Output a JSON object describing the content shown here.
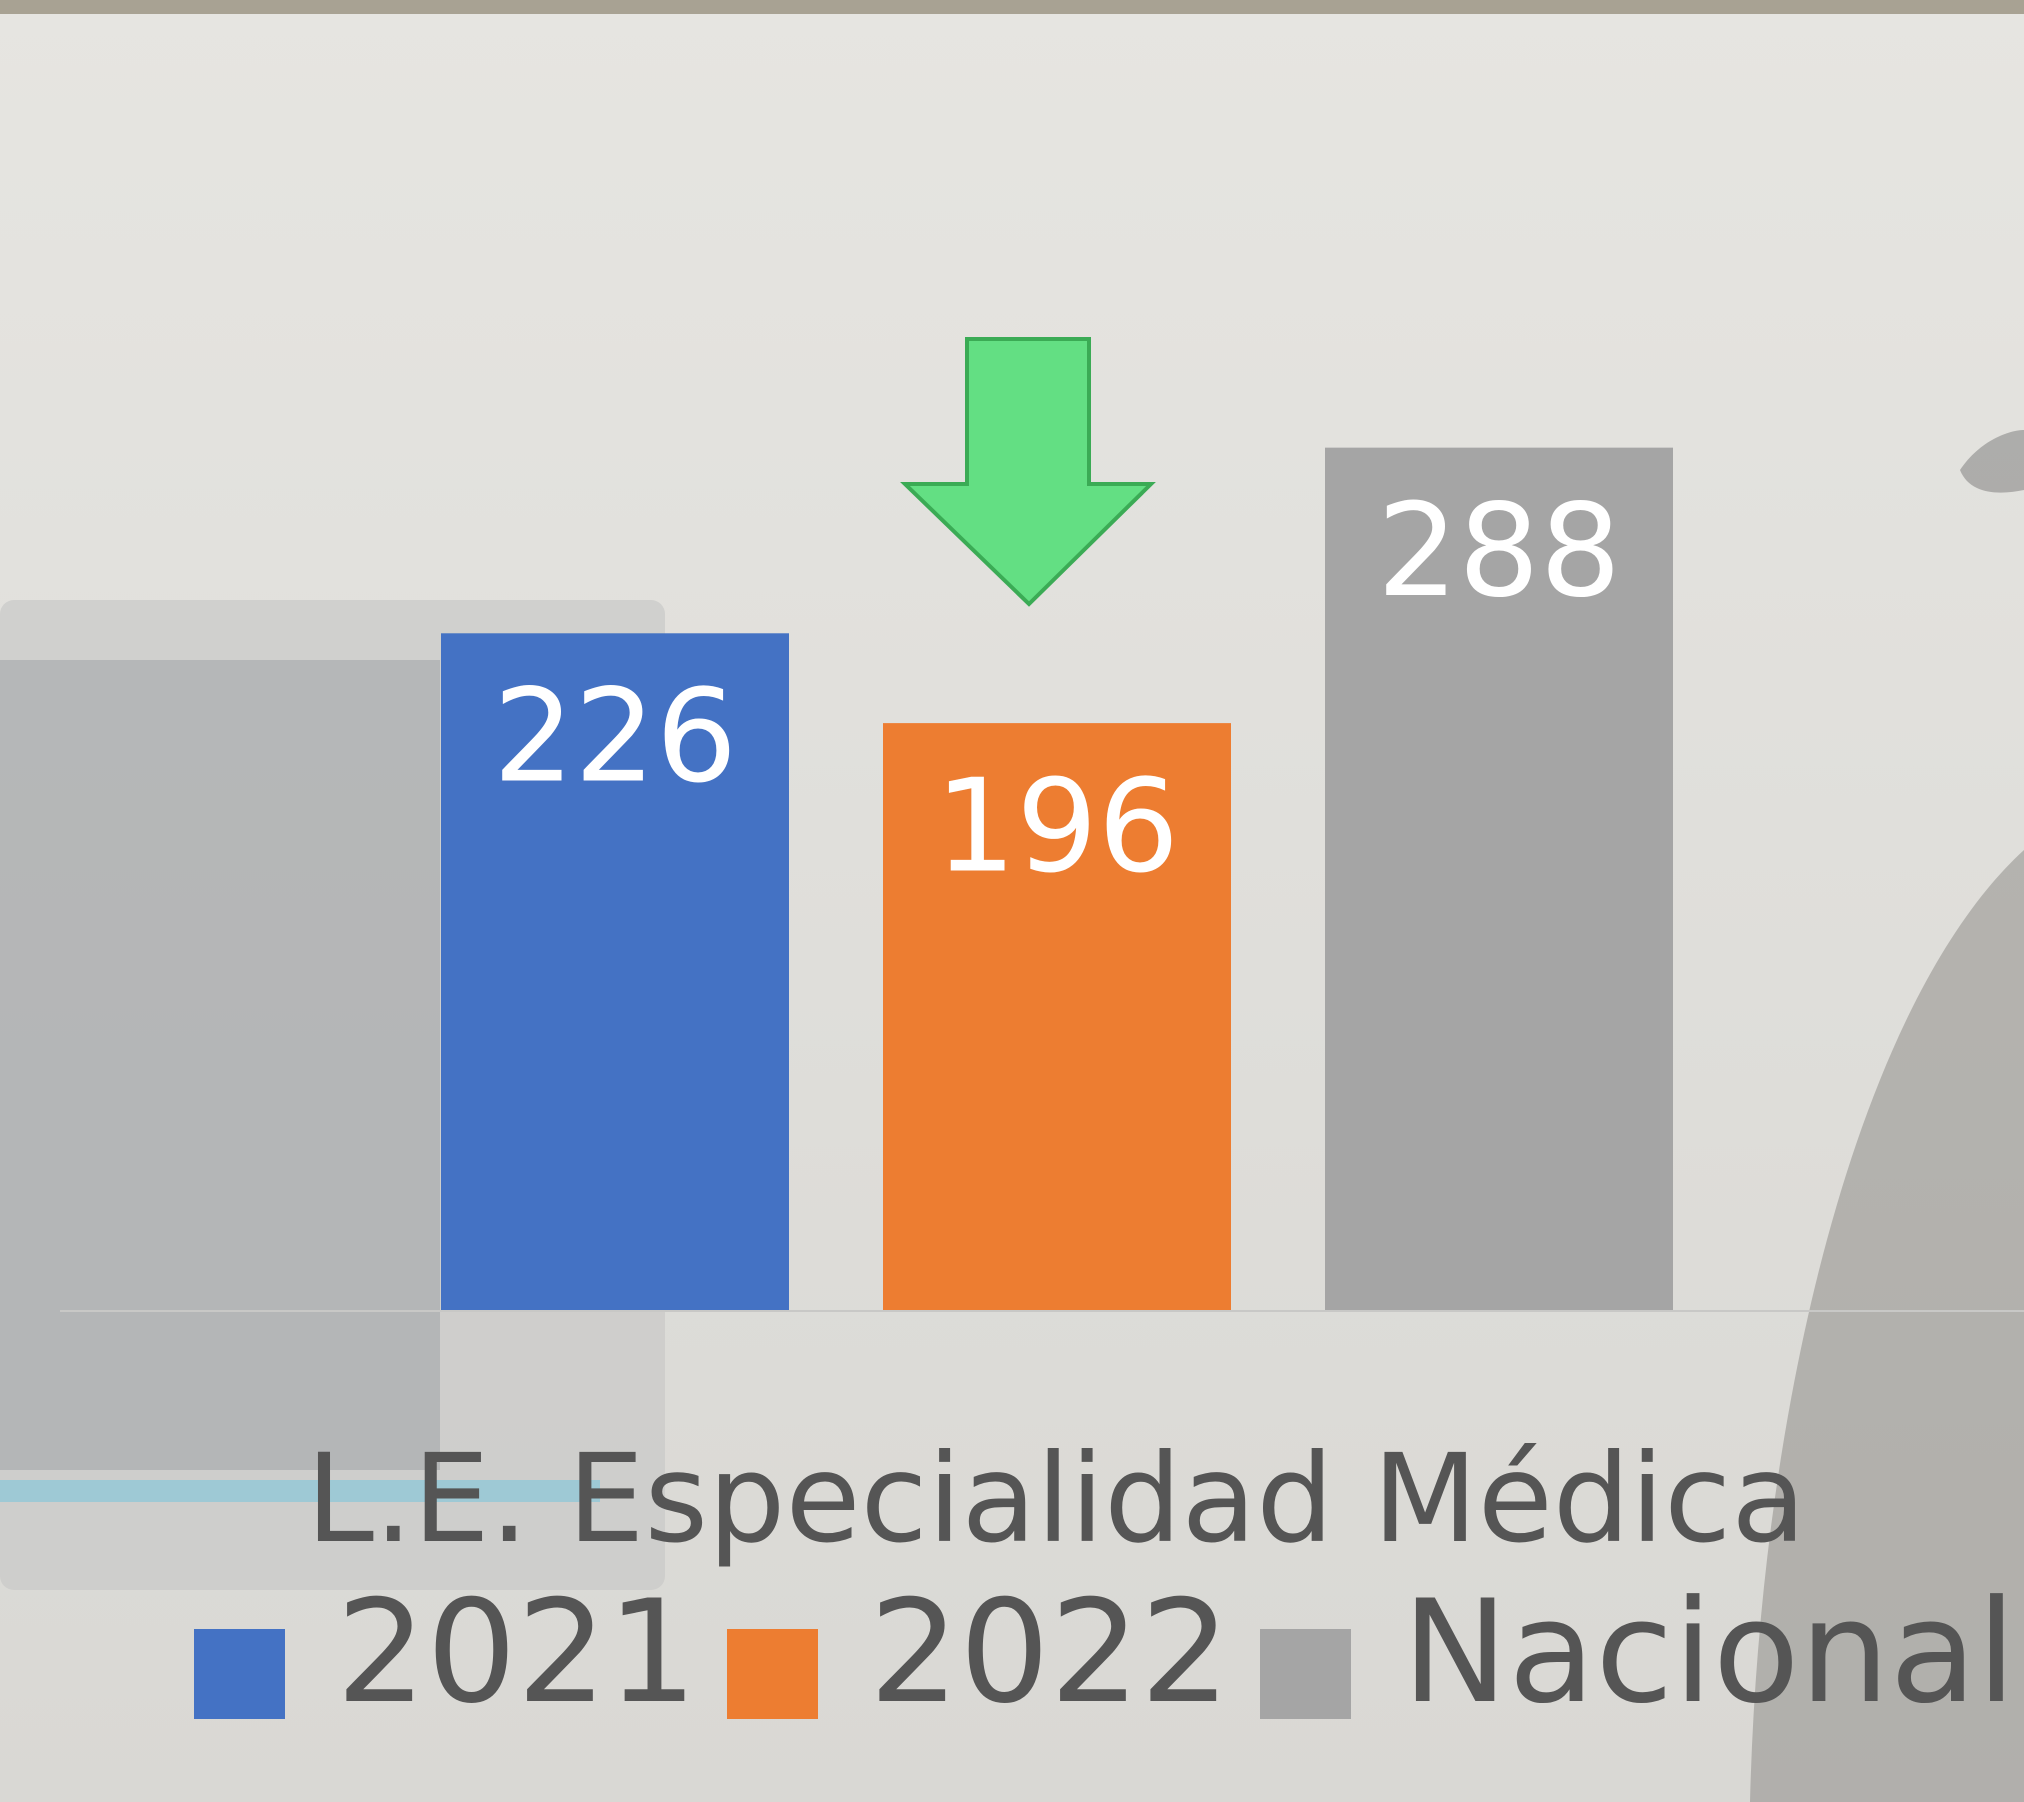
{
  "chart_data": {
    "type": "bar",
    "categories": [
      "L.E. Especialidad Médica"
    ],
    "series": [
      {
        "name": "2021",
        "color": "#4472c4",
        "values": [
          226
        ]
      },
      {
        "name": "2022",
        "color": "#ed7d31",
        "values": [
          196
        ]
      },
      {
        "name": "Nacional",
        "color": "#a5a5a5",
        "values": [
          288
        ]
      }
    ],
    "ylim": [
      0,
      350
    ],
    "data_labels": true,
    "legend": "bottom"
  }
}
